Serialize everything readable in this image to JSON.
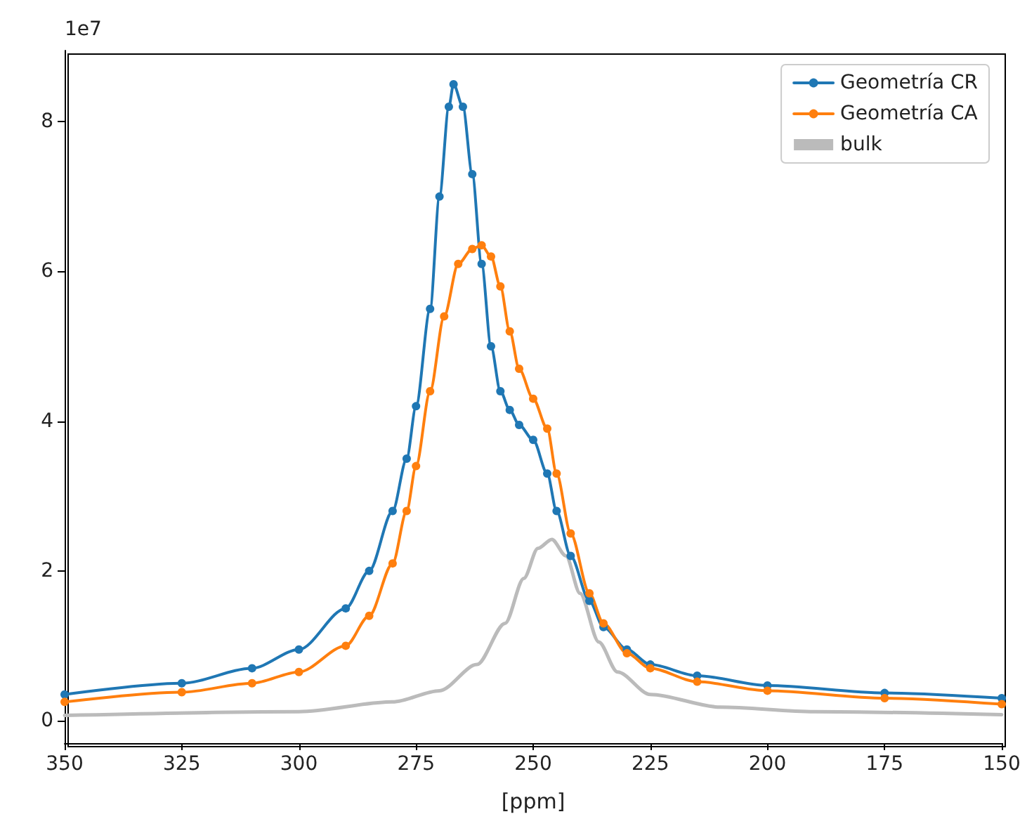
{
  "chart_data": {
    "type": "line",
    "xlabel": "[ppm]",
    "annotations": [
      "1e7"
    ],
    "xlim": [
      350,
      150
    ],
    "xticks": [
      350,
      325,
      300,
      275,
      250,
      225,
      200,
      175,
      150
    ],
    "ylim": [
      -0.3,
      8.95
    ],
    "yticks": [
      0,
      2,
      4,
      6,
      8
    ],
    "grid": false,
    "legend": "top right",
    "series": [
      {
        "name": "Geometría CR",
        "color": "#1f77b4",
        "marker": "circle",
        "x": [
          350,
          325,
          310,
          300,
          290,
          285,
          280,
          277,
          275,
          272,
          270,
          268,
          267,
          265,
          263,
          261,
          259,
          257,
          255,
          253,
          250,
          247,
          245,
          242,
          238,
          235,
          230,
          225,
          215,
          200,
          175,
          150
        ],
        "values": [
          0.35,
          0.5,
          0.7,
          0.95,
          1.5,
          2.0,
          2.8,
          3.5,
          4.2,
          5.5,
          7.0,
          8.2,
          8.5,
          8.2,
          7.3,
          6.1,
          5.0,
          4.4,
          4.15,
          3.95,
          3.75,
          3.3,
          2.8,
          2.2,
          1.6,
          1.25,
          0.95,
          0.75,
          0.6,
          0.47,
          0.37,
          0.3
        ]
      },
      {
        "name": "Geometría CA",
        "color": "#ff7f0e",
        "marker": "circle",
        "x": [
          350,
          325,
          310,
          300,
          290,
          285,
          280,
          277,
          275,
          272,
          269,
          266,
          263,
          261,
          259,
          257,
          255,
          253,
          250,
          247,
          245,
          242,
          238,
          235,
          230,
          225,
          215,
          200,
          175,
          150
        ],
        "values": [
          0.25,
          0.38,
          0.5,
          0.65,
          1.0,
          1.4,
          2.1,
          2.8,
          3.4,
          4.4,
          5.4,
          6.1,
          6.3,
          6.35,
          6.2,
          5.8,
          5.2,
          4.7,
          4.3,
          3.9,
          3.3,
          2.5,
          1.7,
          1.3,
          0.9,
          0.7,
          0.52,
          0.4,
          0.3,
          0.22
        ]
      },
      {
        "name": "bulk",
        "color": "#bbbbbb",
        "marker": "none",
        "x": [
          350,
          300,
          280,
          270,
          262,
          256,
          252,
          249,
          246,
          243,
          240,
          236,
          232,
          225,
          210,
          190,
          150
        ],
        "values": [
          0.07,
          0.12,
          0.25,
          0.4,
          0.75,
          1.3,
          1.9,
          2.3,
          2.42,
          2.2,
          1.7,
          1.05,
          0.65,
          0.35,
          0.18,
          0.12,
          0.08
        ]
      }
    ]
  }
}
